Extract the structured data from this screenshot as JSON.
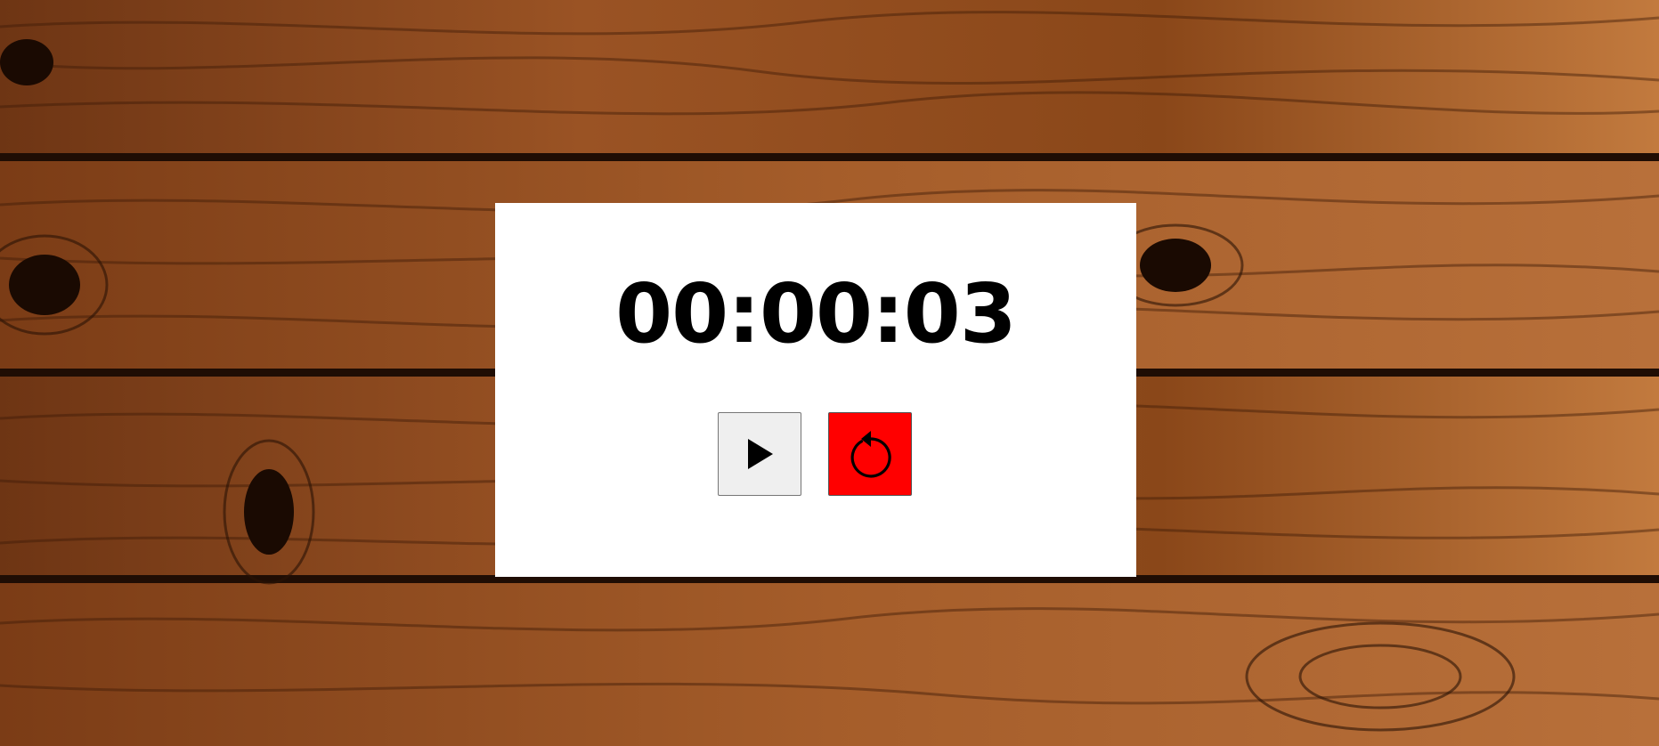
{
  "stopwatch": {
    "time": "00:00:03"
  },
  "controls": {
    "play_icon": "play-icon",
    "reset_icon": "reset-icon"
  },
  "colors": {
    "card": "#ffffff",
    "reset_button": "#ff0000",
    "play_button": "#efefef",
    "wood_base": "#8a4a1f"
  }
}
